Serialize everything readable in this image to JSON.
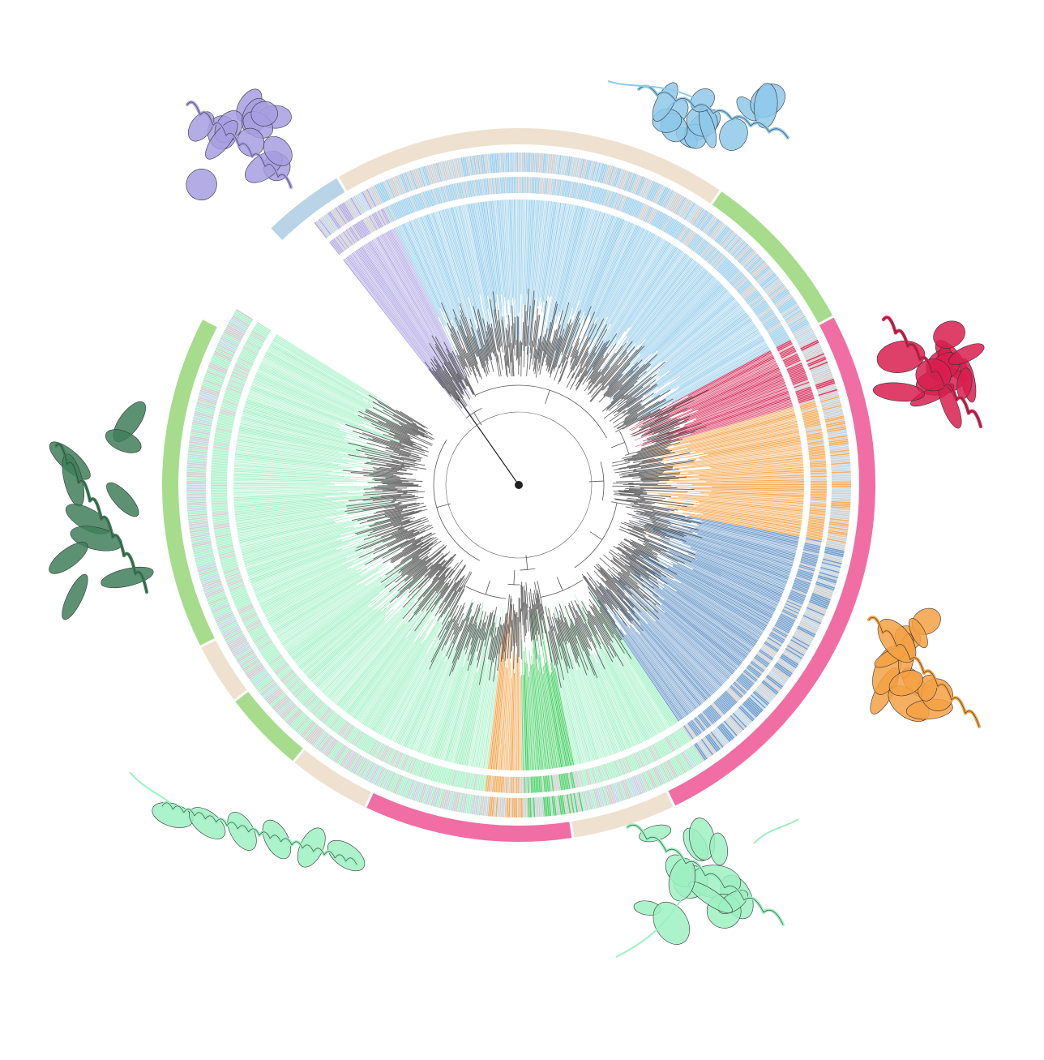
{
  "figure": {
    "type": "circular-phylogenetic-tree",
    "background": "#ffffff",
    "gap_between_first_and_last_clade": true
  },
  "palette": {
    "lavender": "#a79de0",
    "sky_blue": "#8ec9ea",
    "steel_blue": "#5b8ec4",
    "crimson": "#d81f4f",
    "orange": "#f4a144",
    "mint": "#9ef0c2",
    "green": "#33cc55",
    "dark_green": "#3f7f5a",
    "brown": "#5a3220",
    "rust": "#b9683f",
    "gray": "#c8c8c8",
    "pink": "#f06ea4",
    "light_green": "#a6dc8c",
    "beige": "#eee1cf",
    "pale_blue": "#b8d4e6",
    "yellow": "#f2d35a",
    "branch": "#222222"
  },
  "clades": [
    {
      "name": "clade-lavender",
      "color": "lavender",
      "share": 0.035
    },
    {
      "name": "clade-sky-blue",
      "color": "sky_blue",
      "share": 0.25
    },
    {
      "name": "clade-crimson",
      "color": "crimson",
      "share": 0.035
    },
    {
      "name": "clade-orange-upper",
      "color": "orange",
      "share": 0.075
    },
    {
      "name": "clade-steel-blue",
      "color": "steel_blue",
      "share": 0.13
    },
    {
      "name": "clade-mint-lower",
      "color": "mint",
      "share": 0.065
    },
    {
      "name": "clade-mint-green",
      "color": "green",
      "share": 0.03
    },
    {
      "name": "clade-orange-lower",
      "color": "orange",
      "share": 0.02
    },
    {
      "name": "clade-mint-middle",
      "color": "mint",
      "share": 0.06
    },
    {
      "name": "clade-mint-left",
      "color": "mint",
      "share": 0.27
    }
  ],
  "outer_ring": [
    {
      "color": "pale_blue",
      "share": 0.04
    },
    {
      "color": "beige",
      "share": 0.19
    },
    {
      "color": "light_green",
      "share": 0.08
    },
    {
      "color": "pink",
      "share": 0.27
    },
    {
      "color": "beige",
      "share": 0.05
    },
    {
      "color": "pink",
      "share": 0.1
    },
    {
      "color": "beige",
      "share": 0.04
    },
    {
      "color": "light_green",
      "share": 0.04
    },
    {
      "color": "beige",
      "share": 0.03
    },
    {
      "color": "light_green",
      "share": 0.16
    }
  ],
  "structures": [
    {
      "name": "lavender-protein-structure-icon",
      "color": "lavender",
      "style": "globular"
    },
    {
      "name": "sky-blue-protein-structure-icon",
      "color": "sky_blue",
      "style": "tailed-globular"
    },
    {
      "name": "crimson-protein-structure-icon",
      "color": "crimson",
      "style": "globular"
    },
    {
      "name": "orange-protein-structure-icon",
      "color": "orange",
      "style": "globular"
    },
    {
      "name": "mint-protein-structure-icon-bottom-right",
      "color": "mint",
      "style": "helical-tailed"
    },
    {
      "name": "mint-protein-structure-icon-bottom-left",
      "color": "mint",
      "style": "long-helix"
    },
    {
      "name": "teal-protein-structure-icon-left",
      "color": "dark_green",
      "style": "helical-bundle"
    }
  ]
}
